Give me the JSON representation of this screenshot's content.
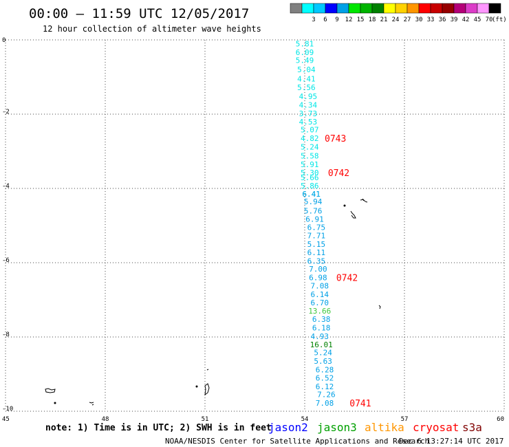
{
  "header": {
    "title": "00:00 – 11:59 UTC 12/05/2017",
    "subtitle": "12 hour collection of altimeter wave heights"
  },
  "colorbar": {
    "unit": "(ft)",
    "bins": [
      {
        "color": "#808080",
        "label": ""
      },
      {
        "color": "#00ffff",
        "label": "3"
      },
      {
        "color": "#00c8ff",
        "label": "6"
      },
      {
        "color": "#0000ff",
        "label": "9"
      },
      {
        "color": "#00a0e6",
        "label": "12"
      },
      {
        "color": "#00e600",
        "label": "15"
      },
      {
        "color": "#00b400",
        "label": "18"
      },
      {
        "color": "#008000",
        "label": "21"
      },
      {
        "color": "#ffff00",
        "label": "24"
      },
      {
        "color": "#ffd200",
        "label": "27"
      },
      {
        "color": "#ff9600",
        "label": "30"
      },
      {
        "color": "#ff0000",
        "label": "33"
      },
      {
        "color": "#c80000",
        "label": "36"
      },
      {
        "color": "#960000",
        "label": "39"
      },
      {
        "color": "#b40078",
        "label": "42"
      },
      {
        "color": "#dc3cc8",
        "label": "45"
      },
      {
        "color": "#ff96ff",
        "label": "70"
      },
      {
        "color": "#000000",
        "label": ""
      }
    ]
  },
  "chart_data": {
    "type": "scatter",
    "title": "00:00 – 11:59 UTC 12/05/2017",
    "subtitle": "12 hour collection of altimeter wave heights",
    "xlim": [
      45,
      60
    ],
    "ylim": [
      -10,
      0
    ],
    "x_ticks": [
      "45",
      "48",
      "51",
      "54",
      "57",
      "60"
    ],
    "y_ticks": [
      "0",
      "-2",
      "-4",
      "-6",
      "-8",
      "-10"
    ],
    "x_tick_values": [
      45,
      48,
      51,
      54,
      57,
      60
    ],
    "y_tick_values": [
      0,
      -2,
      -4,
      -6,
      -8,
      -10
    ],
    "grid": true,
    "series": [
      {
        "name": "jason3",
        "color": "#00e6e6",
        "points": [
          {
            "x": 54.0,
            "y": -0.1,
            "label": "5.81"
          },
          {
            "x": 54.0,
            "y": -0.33,
            "label": "6.09"
          },
          {
            "x": 54.0,
            "y": -0.55,
            "label": "5.49"
          },
          {
            "x": 54.05,
            "y": -0.8,
            "label": "5.04"
          },
          {
            "x": 54.05,
            "y": -1.05,
            "label": "4.41"
          },
          {
            "x": 54.05,
            "y": -1.28,
            "label": "5.56"
          },
          {
            "x": 54.1,
            "y": -1.52,
            "label": "4.95"
          },
          {
            "x": 54.1,
            "y": -1.75,
            "label": "4.34"
          },
          {
            "x": 54.1,
            "y": -1.98,
            "label": "3.73"
          },
          {
            "x": 54.1,
            "y": -2.2,
            "label": "4.53"
          },
          {
            "x": 54.15,
            "y": -2.42,
            "label": "5.07"
          },
          {
            "x": 54.15,
            "y": -2.65,
            "label": "4.82"
          },
          {
            "x": 54.15,
            "y": -2.88,
            "label": "5.24"
          },
          {
            "x": 54.15,
            "y": -3.12,
            "label": "5.58"
          },
          {
            "x": 54.15,
            "y": -3.35,
            "label": "5.91"
          },
          {
            "x": 54.15,
            "y": -3.57,
            "label": "5.30"
          },
          {
            "x": 54.15,
            "y": -3.7,
            "label": "5.66"
          },
          {
            "x": 54.15,
            "y": -3.93,
            "label": "5.86"
          },
          {
            "x": 54.2,
            "y": -4.15,
            "label": "6.41"
          }
        ]
      },
      {
        "name": "jason3",
        "color": "#00a0e6",
        "points": [
          {
            "x": 54.2,
            "y": -4.15,
            "label": "6.41"
          },
          {
            "x": 54.25,
            "y": -4.35,
            "label": "5.94"
          },
          {
            "x": 54.25,
            "y": -4.6,
            "label": "5.76"
          },
          {
            "x": 54.3,
            "y": -4.82,
            "label": "6.91"
          },
          {
            "x": 54.35,
            "y": -5.05,
            "label": "6.75"
          },
          {
            "x": 54.35,
            "y": -5.27,
            "label": "7.71"
          },
          {
            "x": 54.35,
            "y": -5.5,
            "label": "5.15"
          },
          {
            "x": 54.35,
            "y": -5.72,
            "label": "6.11"
          },
          {
            "x": 54.35,
            "y": -5.95,
            "label": "6.35"
          },
          {
            "x": 54.4,
            "y": -6.17,
            "label": "7.00"
          },
          {
            "x": 54.4,
            "y": -6.4,
            "label": "6.98"
          },
          {
            "x": 54.45,
            "y": -6.62,
            "label": "7.08"
          },
          {
            "x": 54.45,
            "y": -6.85,
            "label": "6.14"
          },
          {
            "x": 54.45,
            "y": -7.07,
            "label": "6.70"
          },
          {
            "x": 54.45,
            "y": -7.3,
            "label": "13.66",
            "color": "#3cc83c"
          },
          {
            "x": 54.5,
            "y": -7.52,
            "label": "6.38"
          },
          {
            "x": 54.5,
            "y": -7.75,
            "label": "6.18"
          },
          {
            "x": 54.45,
            "y": -7.98,
            "label": "4.93"
          },
          {
            "x": 54.5,
            "y": -8.2,
            "label": "16.01",
            "color": "#008000"
          },
          {
            "x": 54.55,
            "y": -8.42,
            "label": "5.24"
          },
          {
            "x": 54.55,
            "y": -8.65,
            "label": "5.63"
          },
          {
            "x": 54.6,
            "y": -8.88,
            "label": "6.28"
          },
          {
            "x": 54.6,
            "y": -9.1,
            "label": "6.52"
          },
          {
            "x": 54.6,
            "y": -9.33,
            "label": "6.12"
          },
          {
            "x": 54.65,
            "y": -9.55,
            "label": "7.26"
          },
          {
            "x": 54.6,
            "y": -9.78,
            "label": "7.08"
          }
        ]
      }
    ],
    "annotations": [
      {
        "text": "0743",
        "x": 54.6,
        "y": -2.65,
        "color": "#ff0000"
      },
      {
        "text": "0742",
        "x": 54.7,
        "y": -3.57,
        "color": "#ff0000"
      },
      {
        "text": "0742",
        "x": 54.95,
        "y": -6.4,
        "color": "#ff0000"
      },
      {
        "text": "0741",
        "x": 55.35,
        "y": -9.78,
        "color": "#ff0000"
      }
    ]
  },
  "footer": {
    "note": "note: 1) Time is in UTC; 2) SWH is in feet",
    "legend": [
      {
        "name": "jason2",
        "color": "#0000ff"
      },
      {
        "name": "jason3",
        "color": "#00a000"
      },
      {
        "name": "altika",
        "color": "#ff9600"
      },
      {
        "name": "cryosat",
        "color": "#ff0000"
      },
      {
        "name": "s3a",
        "color": "#800000"
      }
    ],
    "credit": "NOAA/NESDIS Center for Satellite Applications and Research",
    "timestamp": "Dec  6 13:27:14 UTC 2017"
  }
}
